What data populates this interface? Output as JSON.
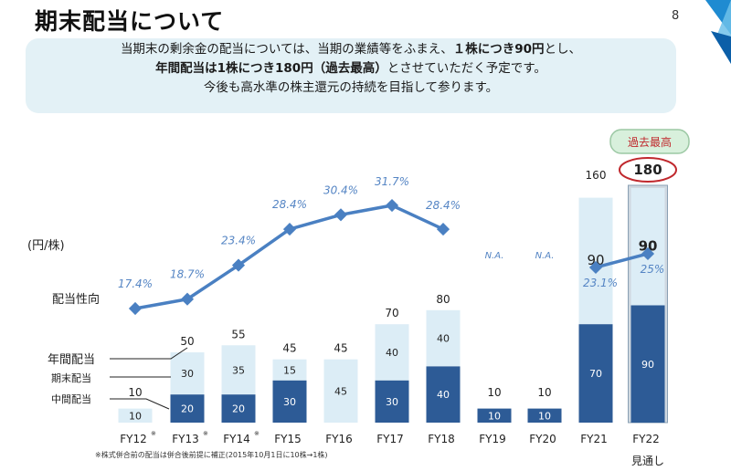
{
  "slide": {
    "title": "期末配当について",
    "page_number": "8",
    "message": {
      "line1_a": "当期末の剰余金の配当については、当期の業績等をふまえ、",
      "line1_b": "１株につき90円",
      "line1_c": "とし、",
      "line2_a": "年間配当は1株につき180円（過去最高）",
      "line2_b": "とさせていただく予定です。",
      "line3": "今後も高水準の株主還元の持続を目指して参ります。"
    },
    "footnote": "※株式併合前の配当は併合後前提に補正(2015年10月1日に10株→1株)"
  },
  "colors": {
    "interim": "#2d5b96",
    "yearend": "#dcedf6",
    "payout_line": "#4a80c2",
    "payout_label": "#5585c4",
    "highlight": "#c0282d",
    "badge_fill": "#d8f0dc",
    "accent": "#1f8bd1"
  },
  "chart_data": {
    "type": "bar",
    "stacked": true,
    "unit_label": "(円/株)",
    "categories": [
      "FY12",
      "FY13",
      "FY14",
      "FY15",
      "FY16",
      "FY17",
      "FY18",
      "FY19",
      "FY20",
      "FY21",
      "FY22"
    ],
    "category_notes": [
      "※",
      "※",
      "※",
      "",
      "",
      "",
      "",
      "",
      "",
      "",
      ""
    ],
    "forecast_label": "見通し",
    "series": [
      {
        "name": "中間配当",
        "values": [
          null,
          20,
          20,
          30,
          0,
          30,
          40,
          10,
          10,
          70,
          90
        ],
        "labels": [
          "",
          "20",
          "20",
          "30",
          "",
          "30",
          "40",
          "10",
          "10",
          "70",
          "90"
        ]
      },
      {
        "name": "期末配当",
        "values": [
          10,
          30,
          35,
          15,
          45,
          40,
          40,
          0,
          0,
          90,
          90
        ],
        "labels": [
          "10",
          "30",
          "35",
          "15",
          "45",
          "40",
          "40",
          "",
          "",
          "90",
          "90"
        ]
      }
    ],
    "totals": [
      "10",
      "50",
      "55",
      "45",
      "45",
      "70",
      "80",
      "10",
      "10",
      "160",
      "180"
    ],
    "total_series_name": "年間配当",
    "payout_ratio": {
      "name": "配当性向",
      "values": [
        17.4,
        18.7,
        23.4,
        28.4,
        30.4,
        31.7,
        28.4,
        null,
        null,
        23.1,
        25
      ],
      "labels": [
        "17.4%",
        "18.7%",
        "23.4%",
        "28.4%",
        "30.4%",
        "31.7%",
        "28.4%",
        "N.A.",
        "N.A.",
        "23.1%",
        "25%"
      ]
    },
    "record_badge": "過去最高"
  }
}
